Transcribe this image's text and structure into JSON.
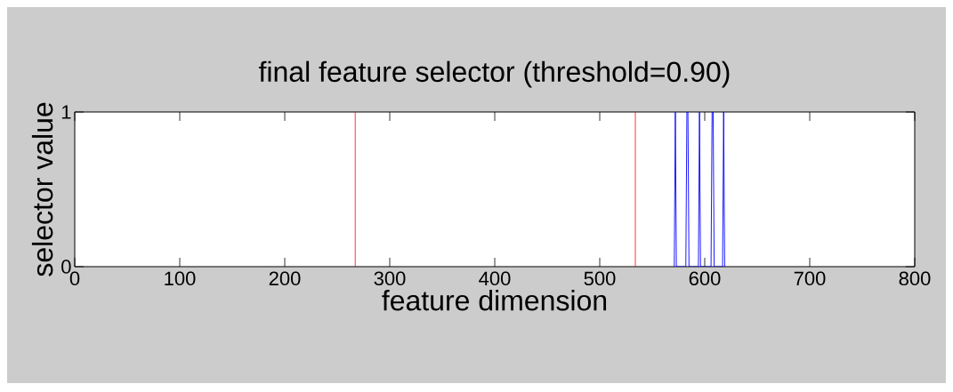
{
  "chart_data": {
    "type": "line",
    "title": "final feature selector (threshold=0.90)",
    "xlabel": "feature dimension",
    "ylabel": "selector value",
    "x": [
      571,
      572,
      573,
      582,
      583,
      584,
      585,
      594,
      595,
      596,
      606,
      607,
      608,
      609,
      617,
      618,
      619
    ],
    "values": [
      0,
      1,
      0,
      0,
      1,
      1,
      0,
      0,
      1,
      0,
      0,
      1,
      1,
      0,
      0,
      1,
      0
    ],
    "color": "#0000ff",
    "line_style": "solid",
    "marker": "none",
    "ref_lines": [
      {
        "axis": "x",
        "value": 267,
        "color": "#ff0000"
      },
      {
        "axis": "x",
        "value": 534,
        "color": "#ff0000"
      }
    ],
    "xlim": [
      0,
      800
    ],
    "ylim": [
      0,
      1
    ],
    "xticks": [
      0,
      100,
      200,
      300,
      400,
      500,
      600,
      700,
      800
    ],
    "yticks": [
      0,
      1
    ],
    "grid": false
  }
}
